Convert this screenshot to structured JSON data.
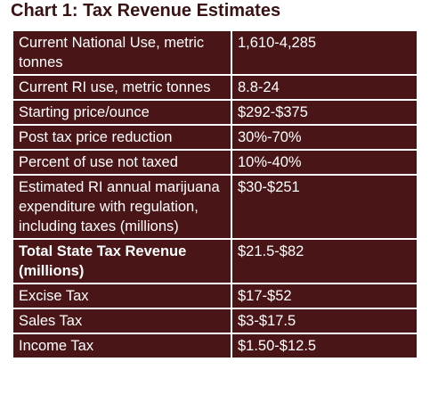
{
  "title": "Chart 1: Tax Revenue Estimates",
  "table": {
    "rows": [
      [
        "Current National Use, metric tonnes",
        "1,610-4,285"
      ],
      [
        "Current RI use, metric tonnes",
        "8.8-24"
      ],
      [
        "Starting price/ounce",
        "$292-$375"
      ],
      [
        "Post tax price reduction",
        "30%-70%"
      ],
      [
        "Percent of use not taxed",
        "10%-40%"
      ],
      [
        "Estimated RI annual marijuana expenditure with regulation, including taxes (millions)",
        "$30-$251"
      ],
      [
        "Total State Tax Revenue (millions)",
        "$21.5-$82"
      ],
      [
        "Excise Tax",
        "$17-$52"
      ],
      [
        "Sales Tax",
        "$3-$17.5"
      ],
      [
        "Income Tax",
        "$1.50-$12.5"
      ]
    ]
  }
}
